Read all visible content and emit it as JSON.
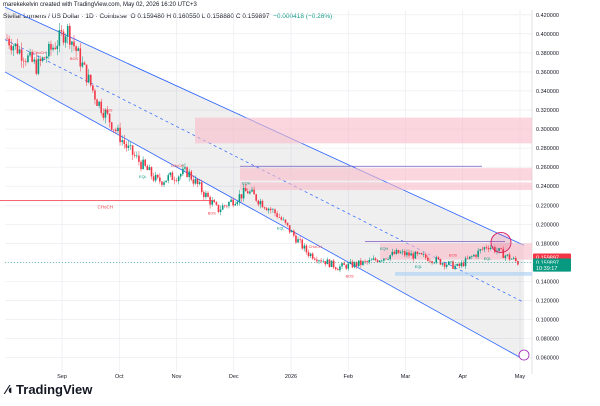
{
  "header": {
    "credit": "marekekelvin created with TradingView.com, May 02, 2026 16:20 UTC+3"
  },
  "symbol_bar": {
    "name": "Stellar Lumens / US Dollar · 1D · Coinbase",
    "ohlc": "O 0.159480 H 0.160550 L 0.158880 C 0.159897",
    "change": "−0.000418 (−0.26%)"
  },
  "branding": {
    "logo_text": "TradingView"
  },
  "colors": {
    "up": "#089981",
    "down": "#f23645",
    "channel": "#2962ff",
    "zone": "#f8bbc8",
    "grid": "#e7e9ee",
    "price_label": "#089981"
  },
  "chart_data": {
    "type": "candlestick",
    "title": "",
    "xlabel": "",
    "ylabel": "",
    "x_ticks": [
      "Sep",
      "Oct",
      "Nov",
      "Dec",
      "2026",
      "Feb",
      "Mar",
      "Apr",
      "May"
    ],
    "y_ticks": [
      "0.420000",
      "0.400000",
      "0.380000",
      "0.360000",
      "0.340000",
      "0.320000",
      "0.300000",
      "0.280000",
      "0.260000",
      "0.240000",
      "0.220000",
      "0.200000",
      "0.180000",
      "0.160000",
      "0.140000",
      "0.120000",
      "0.100000",
      "0.080000",
      "0.060000"
    ],
    "ylim": [
      0.045,
      0.425
    ],
    "grid": true,
    "approx_close_path": [
      {
        "date": "Aug",
        "price": 0.395
      },
      {
        "date": "Sep",
        "price": 0.365
      },
      {
        "date": "Oct",
        "price": 0.405
      },
      {
        "date": "Oct-mid",
        "price": 0.33
      },
      {
        "date": "Nov",
        "price": 0.28
      },
      {
        "date": "Nov-late",
        "price": 0.245
      },
      {
        "date": "Dec",
        "price": 0.255
      },
      {
        "date": "Dec-mid",
        "price": 0.215
      },
      {
        "date": "2026",
        "price": 0.235
      },
      {
        "date": "Jan-mid",
        "price": 0.21
      },
      {
        "date": "Feb",
        "price": 0.17
      },
      {
        "date": "Feb-mid",
        "price": 0.155
      },
      {
        "date": "Mar",
        "price": 0.16
      },
      {
        "date": "Mar-mid",
        "price": 0.17
      },
      {
        "date": "Apr",
        "price": 0.165
      },
      {
        "date": "Apr-mid",
        "price": 0.155
      },
      {
        "date": "Apr-late",
        "price": 0.178
      },
      {
        "date": "May",
        "price": 0.1599
      }
    ],
    "resistance_zones": [
      {
        "low": 0.285,
        "high": 0.312
      },
      {
        "low": 0.246,
        "high": 0.259
      },
      {
        "low": 0.236,
        "high": 0.244
      },
      {
        "low": 0.163,
        "high": 0.18
      }
    ],
    "support_zone": {
      "low": 0.146,
      "high": 0.15
    },
    "lines": [
      {
        "label": "CHoCH",
        "price": 0.225
      },
      {
        "label": "",
        "price": 0.261
      },
      {
        "label": "",
        "price": 0.182
      }
    ],
    "channel": {
      "upper": [
        {
          "date": "Aug",
          "price": 0.428
        },
        {
          "date": "May",
          "price": 0.178
        }
      ],
      "lower": [
        {
          "date": "Aug",
          "price": 0.36
        },
        {
          "date": "May",
          "price": 0.058
        }
      ]
    },
    "markers": {
      "channel_labels": [
        "CHoCH",
        "BOS",
        "BOS",
        "EQL",
        "CHoCH",
        "BOS",
        "EQH",
        "EQL",
        "CHoCH",
        "BOS",
        "EQH",
        "EQL",
        "BOS",
        "EQL"
      ]
    },
    "price_labels": [
      {
        "label": "0.159897",
        "kind": "current"
      },
      {
        "label": "0.159897",
        "kind": "close"
      },
      {
        "label": "10:39:17",
        "kind": "countdown"
      }
    ]
  }
}
